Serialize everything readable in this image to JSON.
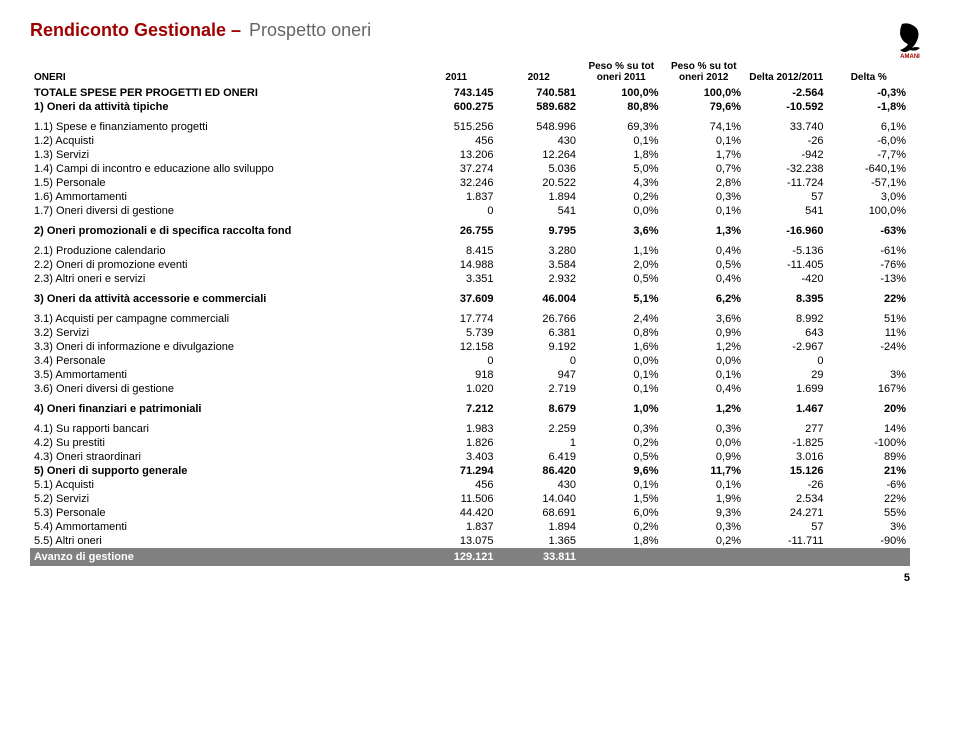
{
  "title1": "Rendiconto Gestionale –",
  "title2": "Prospetto oneri",
  "logo_color": "#a00000",
  "logo_text": "AMANI",
  "page_num": "5",
  "headers": {
    "c0": "ONERI",
    "c1": "2011",
    "c2": "2012",
    "c3": "Peso % su tot oneri 2011",
    "c4": "Peso % su tot oneri 2012",
    "c5": "Delta 2012/2011",
    "c6": "Delta %"
  },
  "rows": [
    {
      "t": "bold",
      "c": [
        "TOTALE SPESE PER PROGETTI ED ONERI",
        "743.145",
        "740.581",
        "100,0%",
        "100,0%",
        "-2.564",
        "-0,3%"
      ]
    },
    {
      "t": "bold",
      "c": [
        "1) Oneri da attività tipiche",
        "600.275",
        "589.682",
        "80,8%",
        "79,6%",
        "-10.592",
        "-1,8%"
      ]
    },
    {
      "t": "sp"
    },
    {
      "c": [
        "1.1) Spese e finanziamento progetti",
        "515.256",
        "548.996",
        "69,3%",
        "74,1%",
        "33.740",
        "6,1%"
      ]
    },
    {
      "c": [
        "1.2) Acquisti",
        "456",
        "430",
        "0,1%",
        "0,1%",
        "-26",
        "-6,0%"
      ]
    },
    {
      "c": [
        "1.3) Servizi",
        "13.206",
        "12.264",
        "1,8%",
        "1,7%",
        "-942",
        "-7,7%"
      ]
    },
    {
      "c": [
        "1.4) Campi di incontro e educazione allo sviluppo",
        "37.274",
        "5.036",
        "5,0%",
        "0,7%",
        "-32.238",
        "-640,1%"
      ]
    },
    {
      "c": [
        "1.5) Personale",
        "32.246",
        "20.522",
        "4,3%",
        "2,8%",
        "-11.724",
        "-57,1%"
      ]
    },
    {
      "c": [
        "1.6) Ammortamenti",
        "1.837",
        "1.894",
        "0,2%",
        "0,3%",
        "57",
        "3,0%"
      ]
    },
    {
      "c": [
        "1.7) Oneri diversi di gestione",
        "0",
        "541",
        "0,0%",
        "0,1%",
        "541",
        "100,0%"
      ]
    },
    {
      "t": "sp"
    },
    {
      "t": "bold",
      "c": [
        "2) Oneri promozionali e di specifica raccolta fond",
        "26.755",
        "9.795",
        "3,6%",
        "1,3%",
        "-16.960",
        "-63%"
      ]
    },
    {
      "t": "sp"
    },
    {
      "c": [
        "2.1) Produzione calendario",
        "8.415",
        "3.280",
        "1,1%",
        "0,4%",
        "-5.136",
        "-61%"
      ]
    },
    {
      "c": [
        "2.2) Oneri di promozione eventi",
        "14.988",
        "3.584",
        "2,0%",
        "0,5%",
        "-11.405",
        "-76%"
      ]
    },
    {
      "c": [
        "2.3) Altri oneri e servizi",
        "3.351",
        "2.932",
        "0,5%",
        "0,4%",
        "-420",
        "-13%"
      ]
    },
    {
      "t": "sp"
    },
    {
      "t": "bold",
      "c": [
        "3) Oneri da attività accessorie e commerciali",
        "37.609",
        "46.004",
        "5,1%",
        "6,2%",
        "8.395",
        "22%"
      ]
    },
    {
      "t": "sp"
    },
    {
      "c": [
        "3.1) Acquisti per campagne commerciali",
        "17.774",
        "26.766",
        "2,4%",
        "3,6%",
        "8.992",
        "51%"
      ]
    },
    {
      "c": [
        "3.2) Servizi",
        "5.739",
        "6.381",
        "0,8%",
        "0,9%",
        "643",
        "11%"
      ]
    },
    {
      "c": [
        "3.3) Oneri di informazione e divulgazione",
        "12.158",
        "9.192",
        "1,6%",
        "1,2%",
        "-2.967",
        "-24%"
      ]
    },
    {
      "c": [
        "3.4) Personale",
        "0",
        "0",
        "0,0%",
        "0,0%",
        "0",
        ""
      ]
    },
    {
      "c": [
        "3.5) Ammortamenti",
        "918",
        "947",
        "0,1%",
        "0,1%",
        "29",
        "3%"
      ]
    },
    {
      "c": [
        "3.6) Oneri diversi di gestione",
        "1.020",
        "2.719",
        "0,1%",
        "0,4%",
        "1.699",
        "167%"
      ]
    },
    {
      "t": "sp"
    },
    {
      "t": "bold",
      "c": [
        "4) Oneri finanziari e patrimoniali",
        "7.212",
        "8.679",
        "1,0%",
        "1,2%",
        "1.467",
        "20%"
      ]
    },
    {
      "t": "sp"
    },
    {
      "c": [
        "4.1) Su rapporti bancari",
        "1.983",
        "2.259",
        "0,3%",
        "0,3%",
        "277",
        "14%"
      ]
    },
    {
      "c": [
        "4.2) Su prestiti",
        "1.826",
        "1",
        "0,2%",
        "0,0%",
        "-1.825",
        "-100%"
      ]
    },
    {
      "c": [
        "4.3) Oneri straordinari",
        "3.403",
        "6.419",
        "0,5%",
        "0,9%",
        "3.016",
        "89%"
      ]
    },
    {
      "t": "bold",
      "c": [
        "5) Oneri di supporto generale",
        "71.294",
        "86.420",
        "9,6%",
        "11,7%",
        "15.126",
        "21%"
      ]
    },
    {
      "c": [
        "5.1) Acquisti",
        "456",
        "430",
        "0,1%",
        "0,1%",
        "-26",
        "-6%"
      ]
    },
    {
      "c": [
        "5.2) Servizi",
        "11.506",
        "14.040",
        "1,5%",
        "1,9%",
        "2.534",
        "22%"
      ]
    },
    {
      "c": [
        "5.3) Personale",
        "44.420",
        "68.691",
        "6,0%",
        "9,3%",
        "24.271",
        "55%"
      ]
    },
    {
      "c": [
        "5.4) Ammortamenti",
        "1.837",
        "1.894",
        "0,2%",
        "0,3%",
        "57",
        "3%"
      ]
    },
    {
      "c": [
        "5.5) Altri oneri",
        "13.075",
        "1.365",
        "1,8%",
        "0,2%",
        "-11.711",
        "-90%"
      ]
    },
    {
      "t": "footer",
      "c": [
        "Avanzo di gestione",
        "129.121",
        "33.811",
        "",
        "",
        "",
        ""
      ]
    }
  ]
}
